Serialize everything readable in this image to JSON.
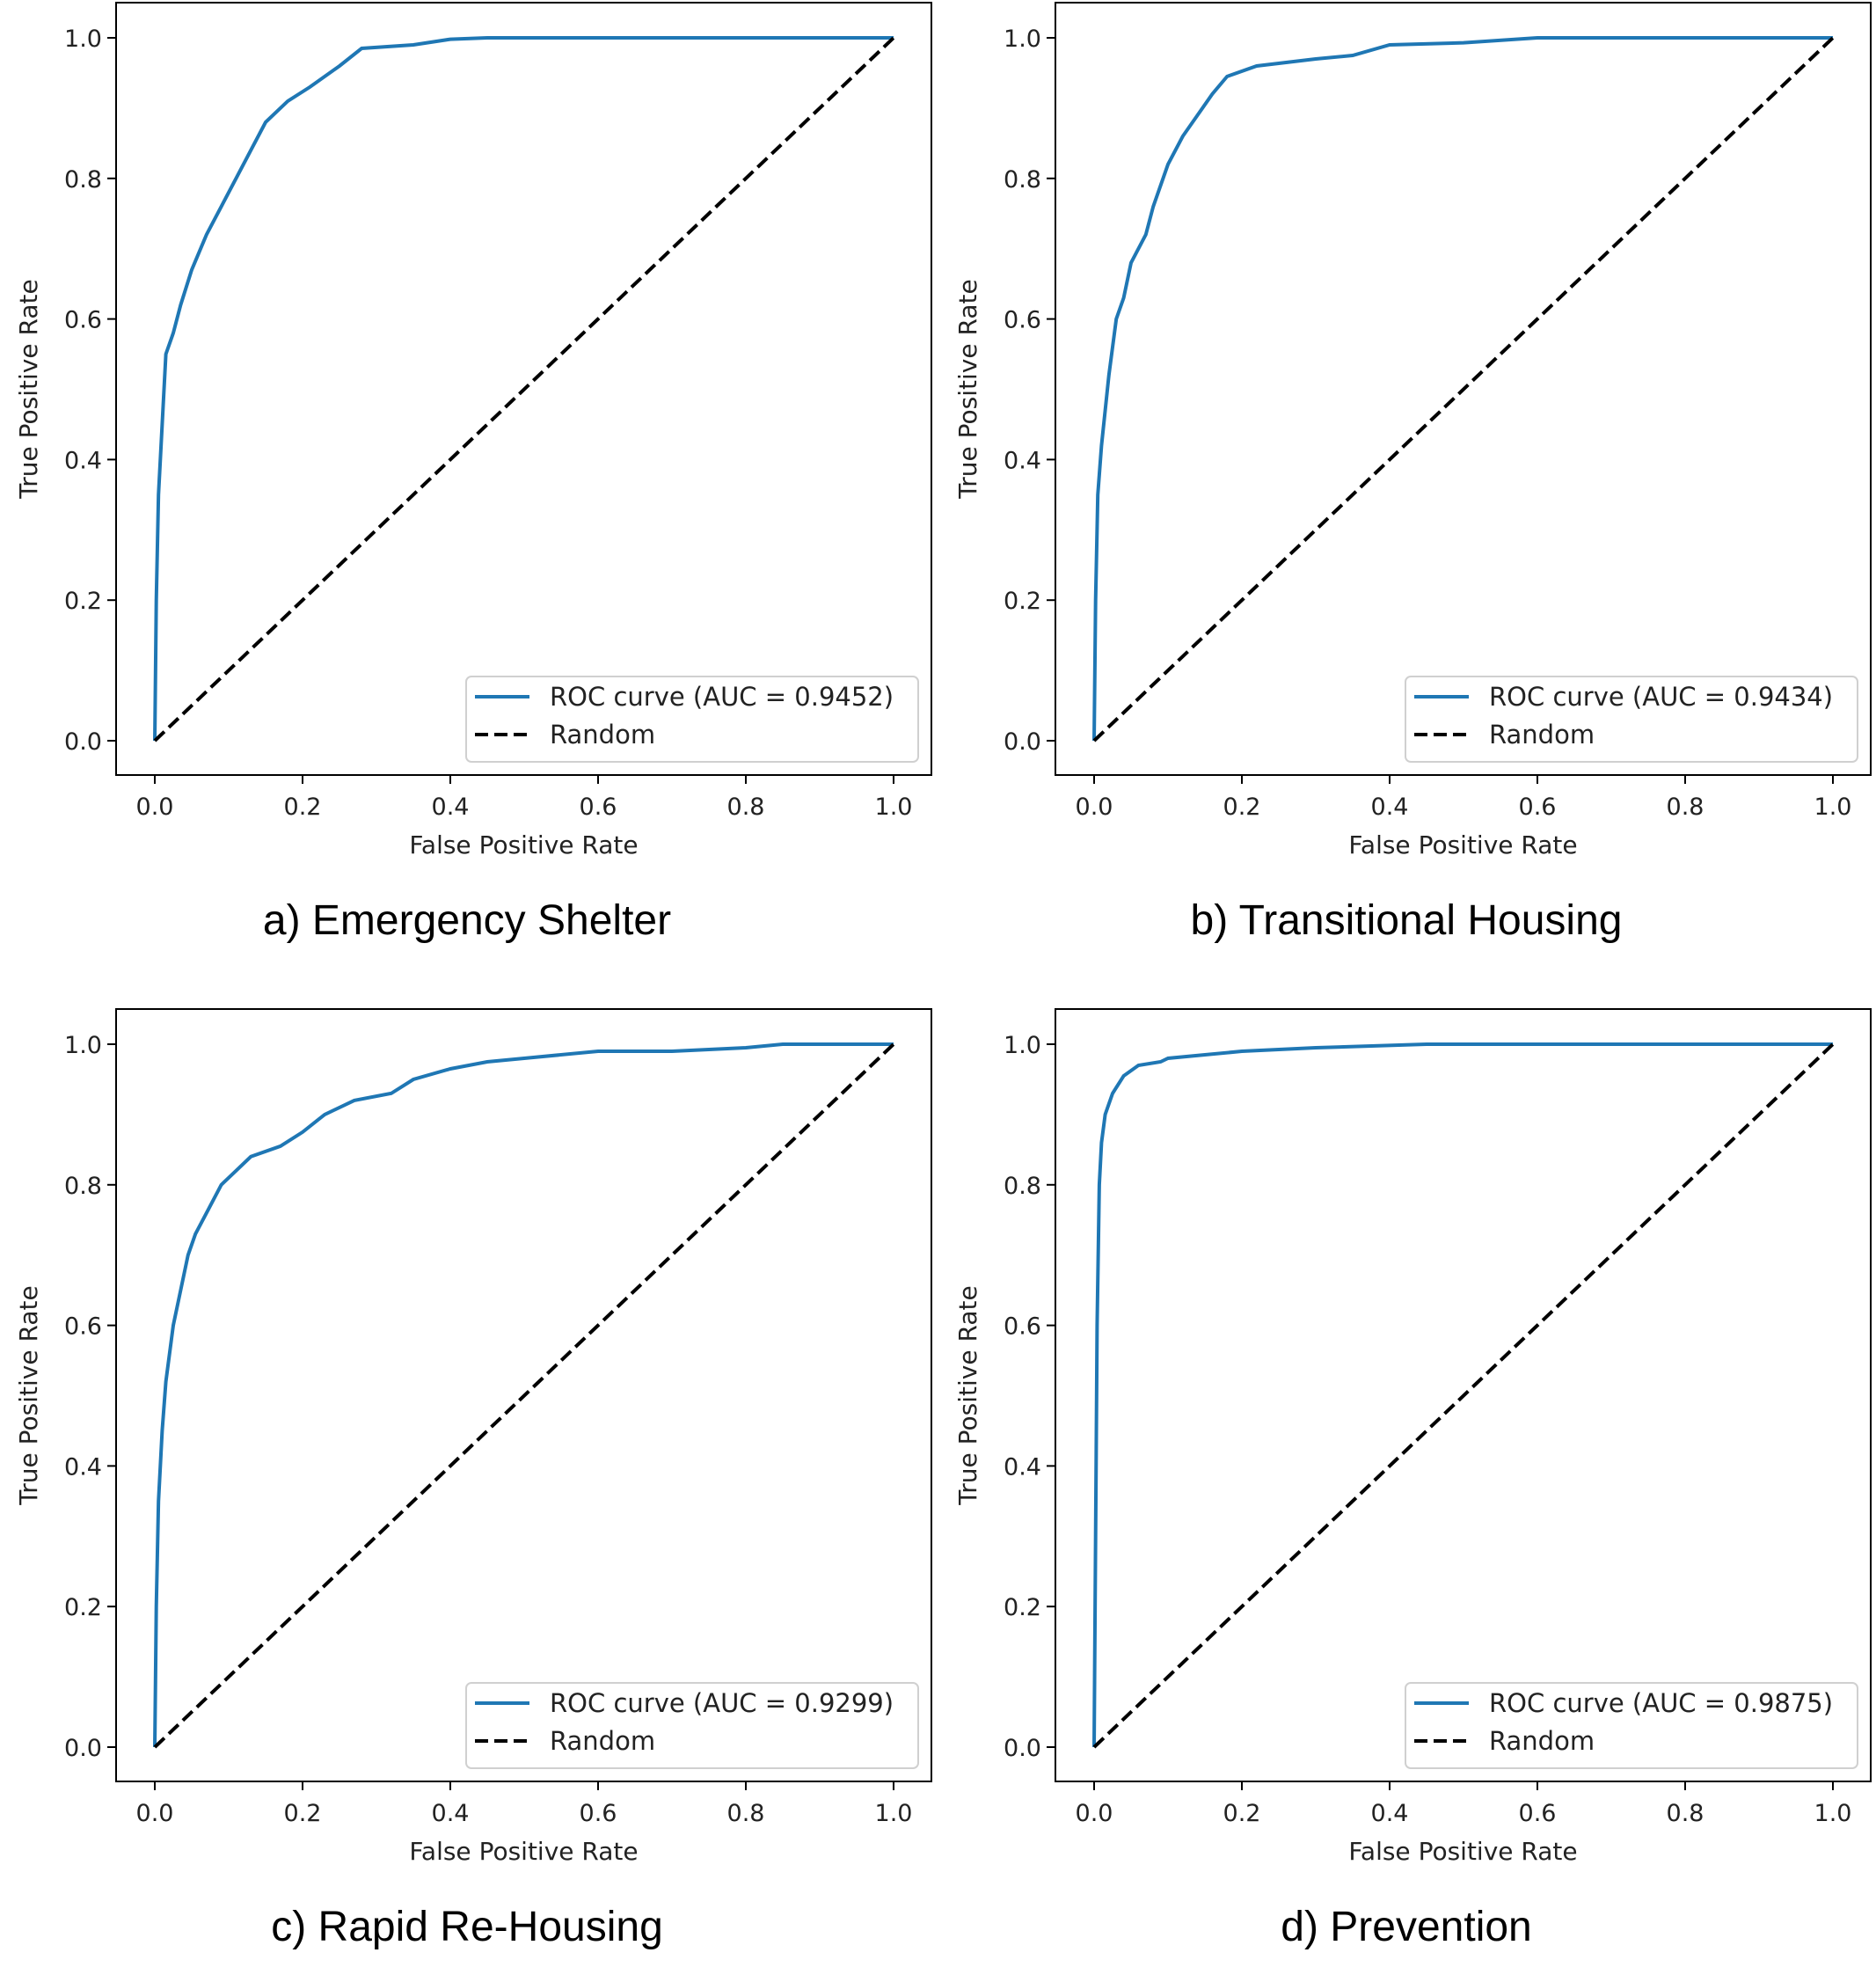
{
  "colors": {
    "roc": "#1f77b4",
    "random": "#000000"
  },
  "chart_data": [
    {
      "type": "line",
      "caption": "a) Emergency Shelter",
      "xlabel": "False Positive Rate",
      "ylabel": "True Positive Rate",
      "xlim": [
        0,
        1
      ],
      "ylim": [
        0,
        1
      ],
      "xticks": [
        "0.0",
        "0.2",
        "0.4",
        "0.6",
        "0.8",
        "1.0"
      ],
      "yticks": [
        "0.0",
        "0.2",
        "0.4",
        "0.6",
        "0.8",
        "1.0"
      ],
      "legend_position": "lower-right",
      "grid": false,
      "series": [
        {
          "name": "ROC curve (AUC = 0.9452)",
          "style": "solid",
          "x": [
            0,
            0.002,
            0.005,
            0.01,
            0.015,
            0.025,
            0.035,
            0.05,
            0.07,
            0.09,
            0.11,
            0.13,
            0.15,
            0.18,
            0.21,
            0.25,
            0.28,
            0.35,
            0.4,
            0.45,
            1
          ],
          "y": [
            0,
            0.2,
            0.35,
            0.45,
            0.55,
            0.58,
            0.62,
            0.67,
            0.72,
            0.76,
            0.8,
            0.84,
            0.88,
            0.91,
            0.93,
            0.96,
            0.985,
            0.99,
            0.998,
            1,
            1
          ]
        },
        {
          "name": "Random",
          "style": "dashed",
          "x": [
            0,
            1
          ],
          "y": [
            0,
            1
          ]
        }
      ]
    },
    {
      "type": "line",
      "caption": "b) Transitional Housing",
      "xlabel": "False Positive Rate",
      "ylabel": "True Positive Rate",
      "xlim": [
        0,
        1
      ],
      "ylim": [
        0,
        1
      ],
      "xticks": [
        "0.0",
        "0.2",
        "0.4",
        "0.6",
        "0.8",
        "1.0"
      ],
      "yticks": [
        "0.0",
        "0.2",
        "0.4",
        "0.6",
        "0.8",
        "1.0"
      ],
      "legend_position": "lower-right",
      "grid": false,
      "series": [
        {
          "name": "ROC curve (AUC = 0.9434)",
          "style": "solid",
          "x": [
            0,
            0.002,
            0.005,
            0.01,
            0.02,
            0.03,
            0.04,
            0.05,
            0.07,
            0.08,
            0.1,
            0.12,
            0.14,
            0.16,
            0.18,
            0.22,
            0.3,
            0.35,
            0.4,
            0.5,
            0.6,
            1
          ],
          "y": [
            0,
            0.2,
            0.35,
            0.42,
            0.52,
            0.6,
            0.63,
            0.68,
            0.72,
            0.76,
            0.82,
            0.86,
            0.89,
            0.92,
            0.945,
            0.96,
            0.97,
            0.975,
            0.99,
            0.993,
            1,
            1
          ]
        },
        {
          "name": "Random",
          "style": "dashed",
          "x": [
            0,
            1
          ],
          "y": [
            0,
            1
          ]
        }
      ]
    },
    {
      "type": "line",
      "caption": "c) Rapid Re-Housing",
      "xlabel": "False Positive Rate",
      "ylabel": "True Positive Rate",
      "xlim": [
        0,
        1
      ],
      "ylim": [
        0,
        1
      ],
      "xticks": [
        "0.0",
        "0.2",
        "0.4",
        "0.6",
        "0.8",
        "1.0"
      ],
      "yticks": [
        "0.0",
        "0.2",
        "0.4",
        "0.6",
        "0.8",
        "1.0"
      ],
      "legend_position": "lower-right",
      "grid": false,
      "series": [
        {
          "name": "ROC curve (AUC = 0.9299)",
          "style": "solid",
          "x": [
            0,
            0.002,
            0.005,
            0.01,
            0.015,
            0.025,
            0.035,
            0.045,
            0.055,
            0.07,
            0.09,
            0.11,
            0.13,
            0.17,
            0.2,
            0.23,
            0.27,
            0.32,
            0.35,
            0.4,
            0.45,
            0.5,
            0.6,
            0.7,
            0.8,
            0.85,
            1
          ],
          "y": [
            0,
            0.2,
            0.35,
            0.45,
            0.52,
            0.6,
            0.65,
            0.7,
            0.73,
            0.76,
            0.8,
            0.82,
            0.84,
            0.855,
            0.875,
            0.9,
            0.92,
            0.93,
            0.95,
            0.965,
            0.975,
            0.98,
            0.99,
            0.99,
            0.995,
            1,
            1
          ]
        },
        {
          "name": "Random",
          "style": "dashed",
          "x": [
            0,
            1
          ],
          "y": [
            0,
            1
          ]
        }
      ]
    },
    {
      "type": "line",
      "caption": "d) Prevention",
      "xlabel": "False Positive Rate",
      "ylabel": "True Positive Rate",
      "xlim": [
        0,
        1
      ],
      "ylim": [
        0,
        1
      ],
      "xticks": [
        "0.0",
        "0.2",
        "0.4",
        "0.6",
        "0.8",
        "1.0"
      ],
      "yticks": [
        "0.0",
        "0.2",
        "0.4",
        "0.6",
        "0.8",
        "1.0"
      ],
      "legend_position": "lower-right",
      "grid": false,
      "series": [
        {
          "name": "ROC curve (AUC = 0.9875)",
          "style": "solid",
          "x": [
            0,
            0.002,
            0.004,
            0.007,
            0.01,
            0.015,
            0.025,
            0.04,
            0.06,
            0.09,
            0.1,
            0.15,
            0.2,
            0.3,
            0.45,
            1
          ],
          "y": [
            0,
            0.3,
            0.6,
            0.8,
            0.86,
            0.9,
            0.93,
            0.955,
            0.97,
            0.975,
            0.98,
            0.985,
            0.99,
            0.995,
            1,
            1
          ]
        },
        {
          "name": "Random",
          "style": "dashed",
          "x": [
            0,
            1
          ],
          "y": [
            0,
            1
          ]
        }
      ]
    }
  ]
}
